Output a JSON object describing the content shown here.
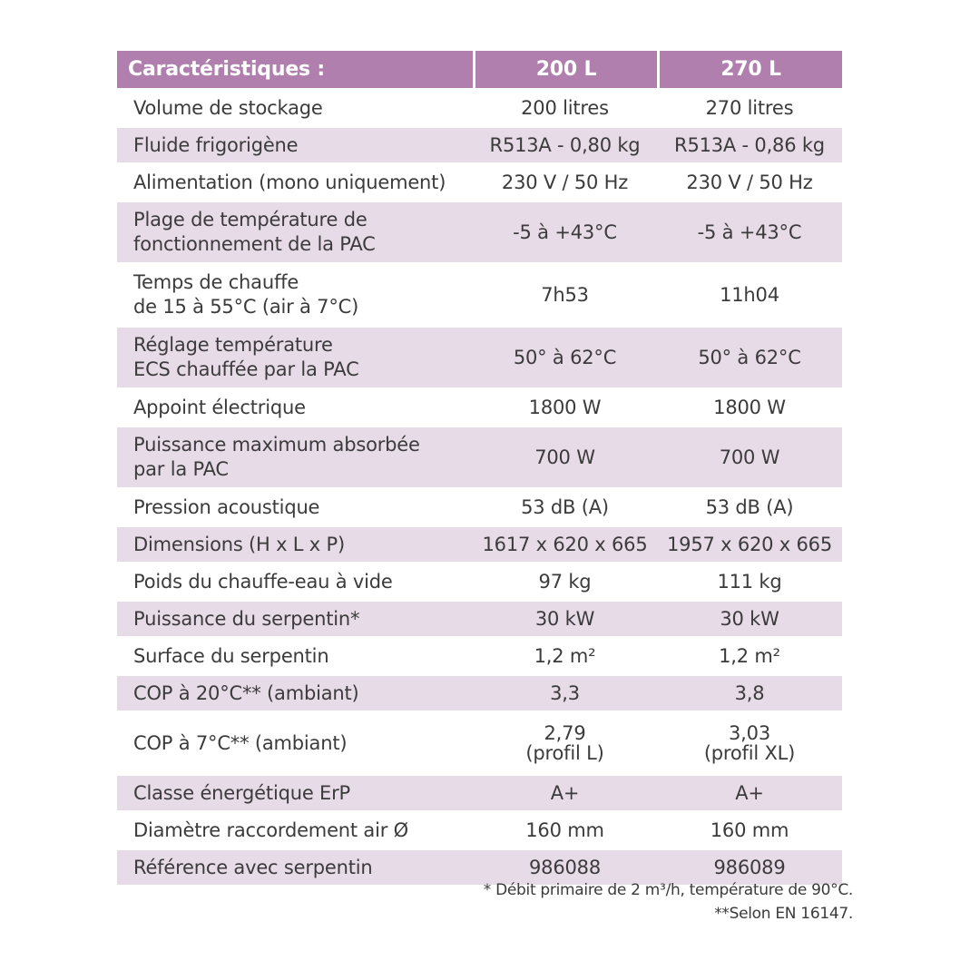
{
  "table": {
    "headers": [
      "Caractéristiques :",
      "200 L",
      "270 L"
    ],
    "rows": [
      {
        "label": [
          "Volume de stockage"
        ],
        "v1": [
          "200 litres"
        ],
        "v2": [
          "270 litres"
        ]
      },
      {
        "label": [
          "Fluide frigorigène"
        ],
        "v1": [
          "R513A - 0,80 kg"
        ],
        "v2": [
          "R513A - 0,86 kg"
        ]
      },
      {
        "label": [
          "Alimentation (mono uniquement)"
        ],
        "v1": [
          "230 V / 50 Hz"
        ],
        "v2": [
          "230 V / 50 Hz"
        ]
      },
      {
        "label": [
          "Plage de température de",
          "fonctionnement de la PAC"
        ],
        "v1": [
          "-5 à +43°C"
        ],
        "v2": [
          "-5 à +43°C"
        ]
      },
      {
        "label": [
          "Temps de chauffe",
          "de 15 à 55°C (air à 7°C)"
        ],
        "v1": [
          "7h53"
        ],
        "v2": [
          "11h04"
        ]
      },
      {
        "label": [
          "Réglage température",
          "ECS chauffée par la PAC"
        ],
        "v1": [
          "50° à 62°C"
        ],
        "v2": [
          "50° à 62°C"
        ]
      },
      {
        "label": [
          "Appoint électrique"
        ],
        "v1": [
          "1800 W"
        ],
        "v2": [
          "1800 W"
        ]
      },
      {
        "label": [
          "Puissance maximum absorbée",
          "par la PAC"
        ],
        "v1": [
          "700 W"
        ],
        "v2": [
          "700 W"
        ]
      },
      {
        "label": [
          "Pression acoustique"
        ],
        "v1": [
          "53 dB (A)"
        ],
        "v2": [
          "53 dB (A)"
        ]
      },
      {
        "label": [
          "Dimensions (H x L x P)"
        ],
        "v1": [
          "1617 x 620 x 665"
        ],
        "v2": [
          "1957 x 620 x 665"
        ]
      },
      {
        "label": [
          "Poids du chauffe-eau à vide"
        ],
        "v1": [
          "97 kg"
        ],
        "v2": [
          "111 kg"
        ]
      },
      {
        "label": [
          "Puissance du serpentin*"
        ],
        "v1": [
          "30 kW"
        ],
        "v2": [
          "30 kW"
        ]
      },
      {
        "label": [
          "Surface du serpentin"
        ],
        "v1": [
          "1,2 m²"
        ],
        "v2": [
          "1,2 m²"
        ]
      },
      {
        "label": [
          "COP à 20°C** (ambiant)"
        ],
        "v1": [
          "3,3"
        ],
        "v2": [
          "3,8"
        ]
      },
      {
        "label": [
          "COP à 7°C** (ambiant)"
        ],
        "v1": [
          "2,79",
          "(profil L)"
        ],
        "v2": [
          "3,03",
          "(profil XL)"
        ]
      },
      {
        "label": [
          "Classe énergétique ErP"
        ],
        "v1": [
          "A+"
        ],
        "v2": [
          "A+"
        ]
      },
      {
        "label": [
          "Diamètre raccordement air Ø"
        ],
        "v1": [
          "160 mm"
        ],
        "v2": [
          "160 mm"
        ]
      },
      {
        "label": [
          "Référence avec serpentin"
        ],
        "v1": [
          "986088"
        ],
        "v2": [
          "986089"
        ]
      }
    ]
  },
  "footnotes": [
    "* Débit primaire de 2 m³/h, température de 90°C.",
    "**Selon EN 16147."
  ],
  "colors": {
    "header_bg": "#b07fae",
    "stripe_bg": "#e8dbe8",
    "text": "#3b3b3b"
  }
}
